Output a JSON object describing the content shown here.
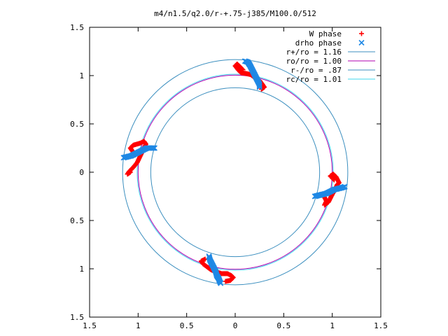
{
  "chart_data": {
    "type": "scatter",
    "title": "m4/n1.5/q2.0/r-+.75-j385/M100.0/512",
    "xlabel": "",
    "ylabel": "",
    "xlim": [
      -1.5,
      1.5
    ],
    "ylim": [
      -1.5,
      1.5
    ],
    "x_ticks": [
      -1.5,
      -1,
      -0.5,
      0,
      0.5,
      1,
      1.5
    ],
    "y_ticks": [
      -1.5,
      -1,
      -0.5,
      0,
      0.5,
      1,
      1.5
    ],
    "x_tick_labels": [
      "1.5",
      "1",
      "0.5",
      "0",
      "0.5",
      "1",
      "1.5"
    ],
    "y_tick_labels": [
      "1.5",
      "1",
      "0.5",
      "0",
      "0.5",
      "1",
      "1.5"
    ],
    "grid": false,
    "legend_position": "top-right",
    "series": [
      {
        "name": "W phase",
        "marker": "plus",
        "color": "#ff0000",
        "arms": [
          {
            "center_angle_deg": 82,
            "points": [
              [
                0.08,
                1.06
              ],
              [
                0.05,
                1.09
              ],
              [
                0.02,
                1.12
              ],
              [
                0.0,
                1.1
              ],
              [
                0.03,
                1.06
              ],
              [
                0.06,
                1.03
              ],
              [
                0.12,
                1.02
              ],
              [
                0.16,
                1.01
              ],
              [
                0.2,
                0.98
              ],
              [
                0.25,
                0.95
              ],
              [
                0.28,
                0.91
              ],
              [
                0.3,
                0.88
              ],
              [
                0.27,
                0.86
              ]
            ]
          },
          {
            "center_angle_deg": 172,
            "points": [
              [
                -1.03,
                0.18
              ],
              [
                -1.06,
                0.22
              ],
              [
                -1.08,
                0.25
              ],
              [
                -1.05,
                0.28
              ],
              [
                -0.98,
                0.3
              ],
              [
                -0.94,
                0.32
              ],
              [
                -0.92,
                0.29
              ],
              [
                -1.01,
                0.1
              ],
              [
                -1.05,
                0.05
              ],
              [
                -1.09,
                0.01
              ],
              [
                -1.11,
                -0.02
              ],
              [
                -1.08,
                0.0
              ]
            ]
          },
          {
            "center_angle_deg": 262,
            "points": [
              [
                -0.31,
                -0.9
              ],
              [
                -0.35,
                -0.92
              ],
              [
                -0.33,
                -0.95
              ],
              [
                -0.29,
                -0.98
              ],
              [
                -0.25,
                -1.01
              ],
              [
                -0.2,
                -1.03
              ],
              [
                -0.14,
                -1.05
              ],
              [
                -0.08,
                -1.05
              ],
              [
                -0.04,
                -1.07
              ],
              [
                -0.02,
                -1.09
              ],
              [
                -0.05,
                -1.12
              ],
              [
                -0.1,
                -1.13
              ]
            ]
          },
          {
            "center_angle_deg": 352,
            "points": [
              [
                0.92,
                -0.26
              ],
              [
                0.94,
                -0.3
              ],
              [
                0.92,
                -0.34
              ],
              [
                0.96,
                -0.31
              ],
              [
                1.0,
                -0.23
              ],
              [
                1.03,
                -0.18
              ],
              [
                1.05,
                -0.13
              ],
              [
                1.07,
                -0.11
              ],
              [
                1.04,
                -0.05
              ],
              [
                1.01,
                -0.02
              ],
              [
                0.98,
                -0.04
              ],
              [
                1.02,
                -0.08
              ]
            ]
          }
        ]
      },
      {
        "name": "drho phase",
        "marker": "cross",
        "color": "#1e88e5",
        "arms": [
          {
            "center_angle_deg": 82,
            "points": [
              [
                0.1,
                1.15
              ],
              [
                0.13,
                1.14
              ],
              [
                0.15,
                1.11
              ],
              [
                0.17,
                1.07
              ],
              [
                0.19,
                1.03
              ],
              [
                0.21,
                0.99
              ],
              [
                0.23,
                0.95
              ],
              [
                0.25,
                0.91
              ],
              [
                0.25,
                0.88
              ]
            ]
          },
          {
            "center_angle_deg": 172,
            "points": [
              [
                -1.15,
                0.15
              ],
              [
                -1.11,
                0.16
              ],
              [
                -1.07,
                0.17
              ],
              [
                -1.03,
                0.19
              ],
              [
                -0.99,
                0.21
              ],
              [
                -0.95,
                0.23
              ],
              [
                -0.91,
                0.25
              ],
              [
                -0.87,
                0.25
              ],
              [
                -0.83,
                0.25
              ]
            ]
          },
          {
            "center_angle_deg": 262,
            "points": [
              [
                -0.27,
                -0.87
              ],
              [
                -0.26,
                -0.91
              ],
              [
                -0.24,
                -0.95
              ],
              [
                -0.22,
                -0.99
              ],
              [
                -0.2,
                -1.03
              ],
              [
                -0.19,
                -1.07
              ],
              [
                -0.17,
                -1.1
              ],
              [
                -0.16,
                -1.13
              ],
              [
                -0.15,
                -1.15
              ]
            ]
          },
          {
            "center_angle_deg": 352,
            "points": [
              [
                0.82,
                -0.25
              ],
              [
                0.86,
                -0.24
              ],
              [
                0.9,
                -0.23
              ],
              [
                0.94,
                -0.22
              ],
              [
                0.98,
                -0.2
              ],
              [
                1.02,
                -0.18
              ],
              [
                1.06,
                -0.17
              ],
              [
                1.1,
                -0.16
              ],
              [
                1.13,
                -0.15
              ]
            ]
          }
        ]
      },
      {
        "name": "r+/ro = 1.16",
        "kind": "circle",
        "radius": 1.16,
        "color": "#3c8fbf"
      },
      {
        "name": "ro/ro = 1.00",
        "kind": "circle",
        "radius": 1.0,
        "color": "#b000b0"
      },
      {
        "name": "r-/ro = .87",
        "kind": "circle",
        "radius": 0.87,
        "color": "#3c8fbf"
      },
      {
        "name": "rc/ro = 1.01",
        "kind": "circle",
        "radius": 1.01,
        "color": "#3fd7ec"
      }
    ]
  }
}
